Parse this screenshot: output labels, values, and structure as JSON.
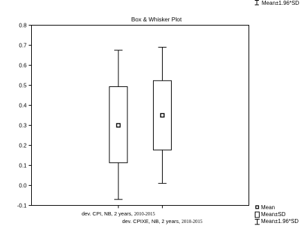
{
  "top_fragment": "Mean±1.96*SD",
  "chart_data": {
    "type": "box",
    "title": "Box & Whisker Plot",
    "xlabel": "",
    "ylabel": "",
    "ylim": [
      -0.1,
      0.8
    ],
    "yticks": [
      -0.1,
      0.0,
      0.1,
      0.2,
      0.3,
      0.4,
      0.5,
      0.6,
      0.7,
      0.8
    ],
    "grid": false,
    "legend_position": "bottom-right outside",
    "series": [
      {
        "label_main": "dev. CPI, NB, 2 years,",
        "label_years": "2010-2015",
        "mean": 0.3,
        "sd_low": 0.113,
        "sd_high": 0.493,
        "ci_low": -0.07,
        "ci_high": 0.675
      },
      {
        "label_main": "dev. CPIXE, NB, 2 years,",
        "label_years": "2010-2015",
        "mean": 0.35,
        "sd_low": 0.177,
        "sd_high": 0.523,
        "ci_low": 0.01,
        "ci_high": 0.69
      }
    ],
    "legend": [
      "Mean",
      "Mean±SD",
      "Mean±1.96*SD"
    ]
  }
}
